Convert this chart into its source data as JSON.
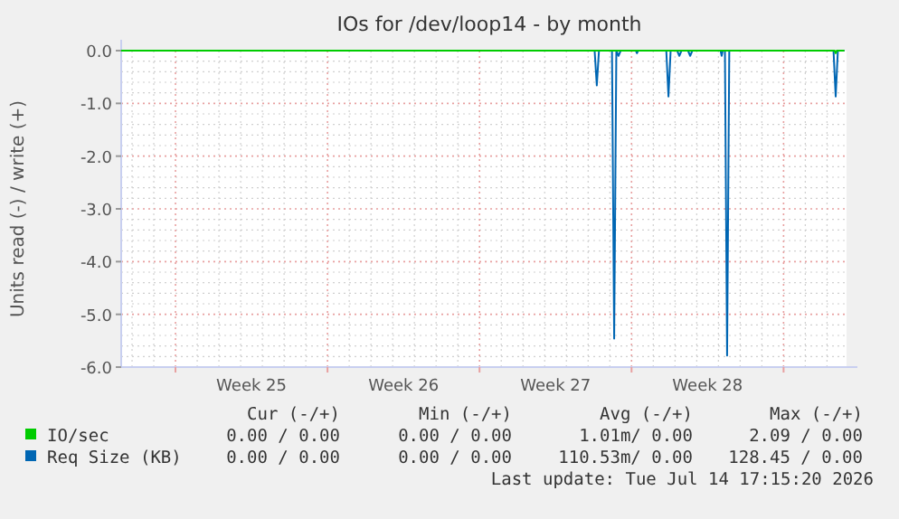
{
  "chart_data": {
    "type": "line",
    "title": "IOs for /dev/loop14 - by month",
    "ylabel": "Units read (-) / write (+)",
    "xlim": [
      "2026-06-12T12:00",
      "2026-07-15T21:36"
    ],
    "xticks": [
      {
        "value": "2026-06-15T00:00",
        "label": null
      },
      {
        "value": "2026-06-18T12:00",
        "label": "Week 25"
      },
      {
        "value": "2026-06-22T00:00",
        "label": null
      },
      {
        "value": "2026-06-25T12:00",
        "label": "Week 26"
      },
      {
        "value": "2026-06-29T00:00",
        "label": null
      },
      {
        "value": "2026-07-02T12:00",
        "label": "Week 27"
      },
      {
        "value": "2026-07-06T00:00",
        "label": null
      },
      {
        "value": "2026-07-09T12:00",
        "label": "Week 28"
      },
      {
        "value": "2026-07-13T00:00",
        "label": null
      }
    ],
    "ylim": [
      -6,
      0
    ],
    "yticks": [
      {
        "value": -6,
        "label": "-6.0"
      },
      {
        "value": -5,
        "label": "-5.0"
      },
      {
        "value": -4,
        "label": "-4.0"
      },
      {
        "value": -3,
        "label": "-3.0"
      },
      {
        "value": -2,
        "label": "-2.0"
      },
      {
        "value": -1,
        "label": "-1.0"
      },
      {
        "value": 0,
        "label": "0.0"
      }
    ],
    "grid": true,
    "legend": "bottom left",
    "series": [
      {
        "name": "IO/sec",
        "color": "#00cc00",
        "x": [
          "2026-06-12T12:00",
          "2026-07-15T08:24",
          "2026-07-15T09:36",
          "2026-07-15T10:48",
          "2026-07-15T19:12"
        ],
        "values": [
          0,
          0,
          -0.05,
          0,
          0
        ]
      },
      {
        "name": "Req Size (KB)",
        "color": "#0066b3",
        "x": [
          "2026-06-12T12:00",
          "2026-07-04T07:12",
          "2026-07-04T09:36",
          "2026-07-04T12:00",
          "2026-07-05T02:24",
          "2026-07-05T04:48",
          "2026-07-05T07:12",
          "2026-07-05T09:36",
          "2026-07-05T12:00",
          "2026-07-06T04:48",
          "2026-07-06T06:00",
          "2026-07-06T07:12",
          "2026-07-07T14:24",
          "2026-07-07T16:48",
          "2026-07-07T19:12",
          "2026-07-08T02:24",
          "2026-07-08T04:48",
          "2026-07-08T07:12",
          "2026-07-08T14:24",
          "2026-07-08T16:48",
          "2026-07-08T19:12",
          "2026-07-10T02:24",
          "2026-07-10T03:36",
          "2026-07-10T04:48",
          "2026-07-10T07:12",
          "2026-07-10T09:36",
          "2026-07-10T12:00",
          "2026-07-15T07:12",
          "2026-07-15T09:36",
          "2026-07-15T12:00",
          "2026-07-15T19:12"
        ],
        "values": [
          0,
          0,
          -0.66,
          0,
          0,
          -5.46,
          0,
          -0.1,
          0,
          0,
          -0.05,
          0,
          0,
          -0.87,
          0,
          0,
          -0.1,
          0,
          0,
          -0.1,
          0,
          0,
          -0.1,
          0,
          0,
          -5.78,
          0,
          0,
          -0.87,
          0,
          0
        ]
      }
    ],
    "annotations": [
      "Cur (-/+)",
      "Min (-/+)",
      "Avg (-/+)",
      "Max (-/+)",
      "0.00 / 0.00",
      "0.00 / 0.00",
      "1.01m/ 0.00",
      "2.09 / 0.00",
      "0.00 / 0.00",
      "0.00 / 0.00",
      "110.53m/ 0.00",
      "128.45 / 0.00",
      "Last update: Tue Jul 14 17:15:20 2026"
    ]
  }
}
